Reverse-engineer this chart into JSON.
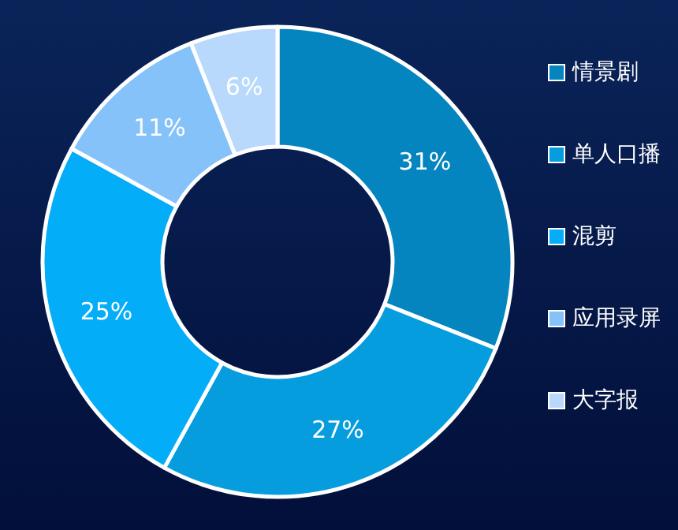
{
  "chart_data": {
    "type": "donut",
    "categories": [
      "情景剧",
      "单人口播",
      "混剪",
      "应用录屏",
      "大字报"
    ],
    "values": [
      31,
      27,
      25,
      11,
      6
    ],
    "colors": [
      "#0585bf",
      "#069ddf",
      "#03adf7",
      "#85c2f9",
      "#b8d9fc"
    ],
    "value_labels": [
      "31%",
      "27%",
      "25%",
      "11%",
      "6%"
    ],
    "legend": "right"
  }
}
